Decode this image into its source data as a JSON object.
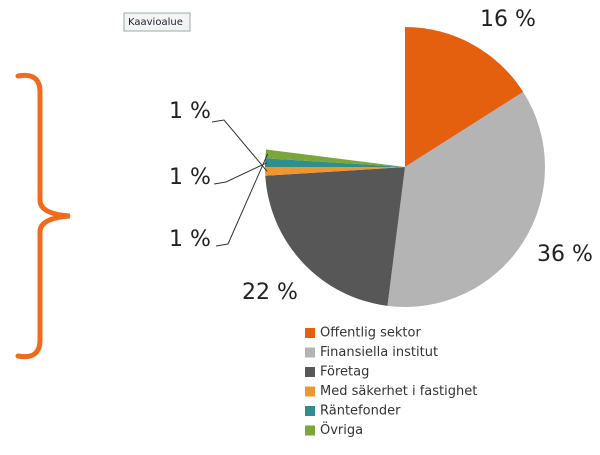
{
  "tooltip": "Kaavioalue",
  "chart_data": {
    "type": "pie",
    "categories": [
      "Offentlig sektor",
      "Finansiella institut",
      "Företag",
      "Med säkerhet i fastighet",
      "Räntefonder",
      "Övriga"
    ],
    "values": [
      16,
      36,
      22,
      1,
      1,
      1
    ],
    "value_labels": [
      "16 %",
      "36 %",
      "22 %",
      "1 %",
      "1 %",
      "1 %"
    ],
    "colors": [
      "#e4600e",
      "#b4b4b4",
      "#575757",
      "#f0962e",
      "#2e8f8f",
      "#7aa63a"
    ]
  }
}
